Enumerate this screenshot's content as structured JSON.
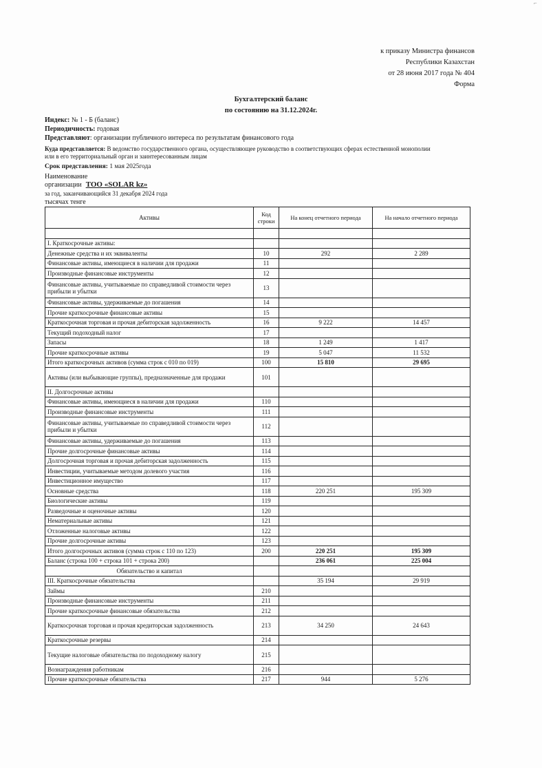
{
  "header": {
    "line1": "к приказу Министра финансов",
    "line2": "Республики Казахстан",
    "line3": "от 28 июня 2017 года № 404",
    "line4": "Форма"
  },
  "title": {
    "line1": "Бухгалтерский баланс",
    "line2": "по состоянию на 31.12.2024г."
  },
  "meta": {
    "index_label": "Индекс:",
    "index_value": "№ 1 - Б (баланс)",
    "period_label": "Периодичность:",
    "period_value": "годовая",
    "submit_label": "Представляют",
    "submit_value": ": организации публичного интереса по результатам финансового года",
    "where_label": "Куда представляется:",
    "where_value": "В ведомство государственного органа, осуществляющее руководство в соответствующих сферах естественной монополии",
    "where_value2": "или в его территориальный орган и заинтересованным лицам",
    "deadline_label": "Срок представления:",
    "deadline_value": "1 мая 2025года",
    "name_label1": "Наименование",
    "name_label2": "организации",
    "org_name": "ТОО «SOLAR kz»",
    "year_line": "за год, заканчивающийся 31 декабря 2024 года",
    "units": "тысячах тенге"
  },
  "table": {
    "headers": [
      "Активы",
      "Код строки",
      "На конец отчетного периода",
      "На начало отчетного периода"
    ],
    "rows": [
      {
        "name": "",
        "code": "",
        "end": "",
        "start": ""
      },
      {
        "name": "I. Краткосрочные активы:",
        "code": "",
        "end": "",
        "start": ""
      },
      {
        "name": "Денежные средства и их эквиваленты",
        "code": "10",
        "end": "292",
        "start": "2 289"
      },
      {
        "name": "Финансовые активы, имеющиеся в наличии для продажи",
        "code": "11",
        "end": "",
        "start": ""
      },
      {
        "name": "Производные финансовые инструменты",
        "code": "12",
        "end": "",
        "start": ""
      },
      {
        "name": "Финансовые активы, учитываемые по справедливой стоимости через прибыли и убытки",
        "code": "13",
        "end": "",
        "start": "",
        "tall": true
      },
      {
        "name": "Финансовые активы, удерживаемые до погашения",
        "code": "14",
        "end": "",
        "start": ""
      },
      {
        "name": "Прочие краткосрочные финансовые активы",
        "code": "15",
        "end": "",
        "start": ""
      },
      {
        "name": "Краткосрочная торговая и прочая дебиторская задолженность",
        "code": "16",
        "end": "9 222",
        "start": "14 457"
      },
      {
        "name": "Текущий подоходный налог",
        "code": "17",
        "end": "",
        "start": ""
      },
      {
        "name": "Запасы",
        "code": "18",
        "end": "1 249",
        "start": "1 417"
      },
      {
        "name": "Прочие краткосрочные активы",
        "code": "19",
        "end": "5 047",
        "start": "11 532"
      },
      {
        "name": "Итого краткосрочных активов (сумма строк с 010 по 019)",
        "code": "100",
        "end": "15 810",
        "start": "29 695",
        "bold": true
      },
      {
        "name": "Активы (или выбывающие группы), предназначенные для продажи",
        "code": "101",
        "end": "",
        "start": "",
        "tall": true
      },
      {
        "name": "II. Долгосрочные активы",
        "code": "",
        "end": "",
        "start": ""
      },
      {
        "name": "Финансовые активы, имеющиеся в наличии для продажи",
        "code": "110",
        "end": "",
        "start": ""
      },
      {
        "name": "Производные финансовые инструменты",
        "code": "111",
        "end": "",
        "start": ""
      },
      {
        "name": "Финансовые активы, учитываемые по справедливой стоимости через прибыли и убытки",
        "code": "112",
        "end": "",
        "start": "",
        "tall": true
      },
      {
        "name": "Финансовые активы, удерживаемые до погашения",
        "code": "113",
        "end": "",
        "start": ""
      },
      {
        "name": "Прочие долгосрочные финансовые активы",
        "code": "114",
        "end": "",
        "start": ""
      },
      {
        "name": "Долгосрочная торговая и прочая дебиторская задолженность",
        "code": "115",
        "end": "",
        "start": ""
      },
      {
        "name": "Инвестиции, учитываемые методом долевого участия",
        "code": "116",
        "end": "",
        "start": ""
      },
      {
        "name": "Инвестиционное имущество",
        "code": "117",
        "end": "",
        "start": ""
      },
      {
        "name": "Основные средства",
        "code": "118",
        "end": "220 251",
        "start": "195 309"
      },
      {
        "name": "Биологические активы",
        "code": "119",
        "end": "",
        "start": ""
      },
      {
        "name": "Разведочные и оценочные активы",
        "code": "120",
        "end": "",
        "start": ""
      },
      {
        "name": "Нематериальные активы",
        "code": "121",
        "end": "",
        "start": ""
      },
      {
        "name": "Отложенные налоговые активы",
        "code": "122",
        "end": "",
        "start": ""
      },
      {
        "name": "Прочие долгосрочные активы",
        "code": "123",
        "end": "",
        "start": ""
      },
      {
        "name": "Итого долгосрочных активов (сумма строк с 110 по 123)",
        "code": "200",
        "end": "220 251",
        "start": "195 309",
        "bold": true
      },
      {
        "name": "Баланс (строка 100 + строка 101 + строка 200)",
        "code": "",
        "end": "236 061",
        "start": "225 004",
        "bold": true
      },
      {
        "name": "Обязательство и капитал",
        "code": "",
        "end": "",
        "start": "",
        "center": true
      },
      {
        "name": "III. Краткосрочные обязательства",
        "code": "",
        "end": "35 194",
        "start": "29 919"
      },
      {
        "name": "Займы",
        "code": "210",
        "end": "",
        "start": ""
      },
      {
        "name": "Производные финансовые инструменты",
        "code": "211",
        "end": "",
        "start": ""
      },
      {
        "name": "Прочие краткосрочные финансовые обязательства",
        "code": "212",
        "end": "",
        "start": ""
      },
      {
        "name": "Краткосрочная торговая и прочая кредиторская задолженность",
        "code": "213",
        "end": "34 250",
        "start": "24 643",
        "tall": true
      },
      {
        "name": "Краткосрочные резервы",
        "code": "214",
        "end": "",
        "start": ""
      },
      {
        "name": "Текущие налоговые обязательства по подоходному налогу",
        "code": "215",
        "end": "",
        "start": "",
        "tall": true
      },
      {
        "name": "Вознаграждения работникам",
        "code": "216",
        "end": "",
        "start": ""
      },
      {
        "name": "Прочие краткосрочные обязательства",
        "code": "217",
        "end": "944",
        "start": "5 276"
      }
    ]
  }
}
